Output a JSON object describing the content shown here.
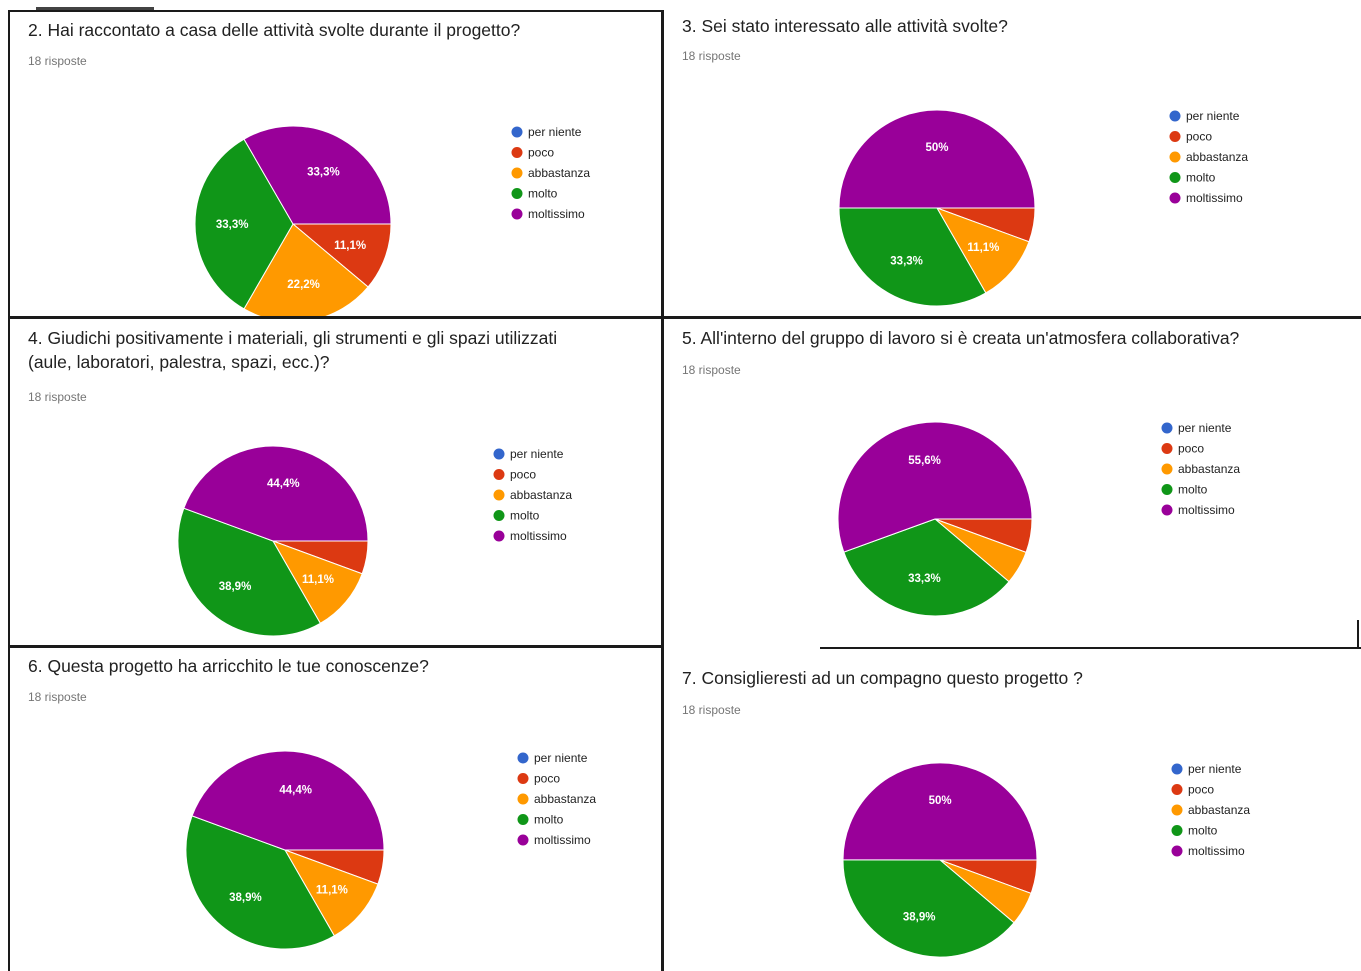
{
  "legend_colors": [
    "#3366cc",
    "#dc3912",
    "#ff9900",
    "#109618",
    "#990099"
  ],
  "chart_data": [
    {
      "type": "pie",
      "title": "2. Hai raccontato a casa delle attività svolte durante il progetto?",
      "subtitle": "18 risposte",
      "categories": [
        "per niente",
        "poco",
        "abbastanza",
        "molto",
        "moltissimo"
      ],
      "values": [
        0,
        11.1,
        22.2,
        33.3,
        33.3
      ],
      "data_labels": [
        "",
        "11,1%",
        "22,2%",
        "33,3%",
        "33,3%"
      ],
      "legend_position": "right"
    },
    {
      "type": "pie",
      "title": "3. Sei stato interessato alle attività svolte?",
      "subtitle": "18 risposte",
      "categories": [
        "per niente",
        "poco",
        "abbastanza",
        "molto",
        "moltissimo"
      ],
      "values": [
        0,
        5.6,
        11.1,
        33.3,
        50
      ],
      "data_labels": [
        "",
        "",
        "11,1%",
        "33,3%",
        "50%"
      ],
      "legend_position": "right"
    },
    {
      "type": "pie",
      "title": "4. Giudichi positivamente i materiali, gli strumenti e gli spazi utilizzati\n(aule, laboratori, palestra, spazi, ecc.)?",
      "subtitle": "18 risposte",
      "categories": [
        "per niente",
        "poco",
        "abbastanza",
        "molto",
        "moltissimo"
      ],
      "values": [
        0,
        5.6,
        11.1,
        38.9,
        44.4
      ],
      "data_labels": [
        "",
        "",
        "11,1%",
        "38,9%",
        "44,4%"
      ],
      "legend_position": "right"
    },
    {
      "type": "pie",
      "title": "5. All'interno del gruppo di lavoro si è creata un'atmosfera collaborativa?",
      "subtitle": "18 risposte",
      "categories": [
        "per niente",
        "poco",
        "abbastanza",
        "molto",
        "moltissimo"
      ],
      "values": [
        0,
        5.6,
        5.6,
        33.3,
        55.6
      ],
      "data_labels": [
        "",
        "",
        "",
        "33,3%",
        "55,6%"
      ],
      "legend_position": "right"
    },
    {
      "type": "pie",
      "title": "6. Questa progetto ha arricchito le tue conoscenze?",
      "subtitle": "18 risposte",
      "categories": [
        "per niente",
        "poco",
        "abbastanza",
        "molto",
        "moltissimo"
      ],
      "values": [
        0,
        5.6,
        11.1,
        38.9,
        44.4
      ],
      "data_labels": [
        "",
        "",
        "11,1%",
        "38,9%",
        "44,4%"
      ],
      "legend_position": "right"
    },
    {
      "type": "pie",
      "title": "7. Consiglieresti ad un compagno questo progetto ?",
      "subtitle": "18 risposte",
      "categories": [
        "per niente",
        "poco",
        "abbastanza",
        "molto",
        "moltissimo"
      ],
      "values": [
        0,
        5.6,
        5.6,
        38.9,
        50
      ],
      "data_labels": [
        "",
        "",
        "",
        "38,9%",
        "50%"
      ],
      "legend_position": "right"
    }
  ]
}
